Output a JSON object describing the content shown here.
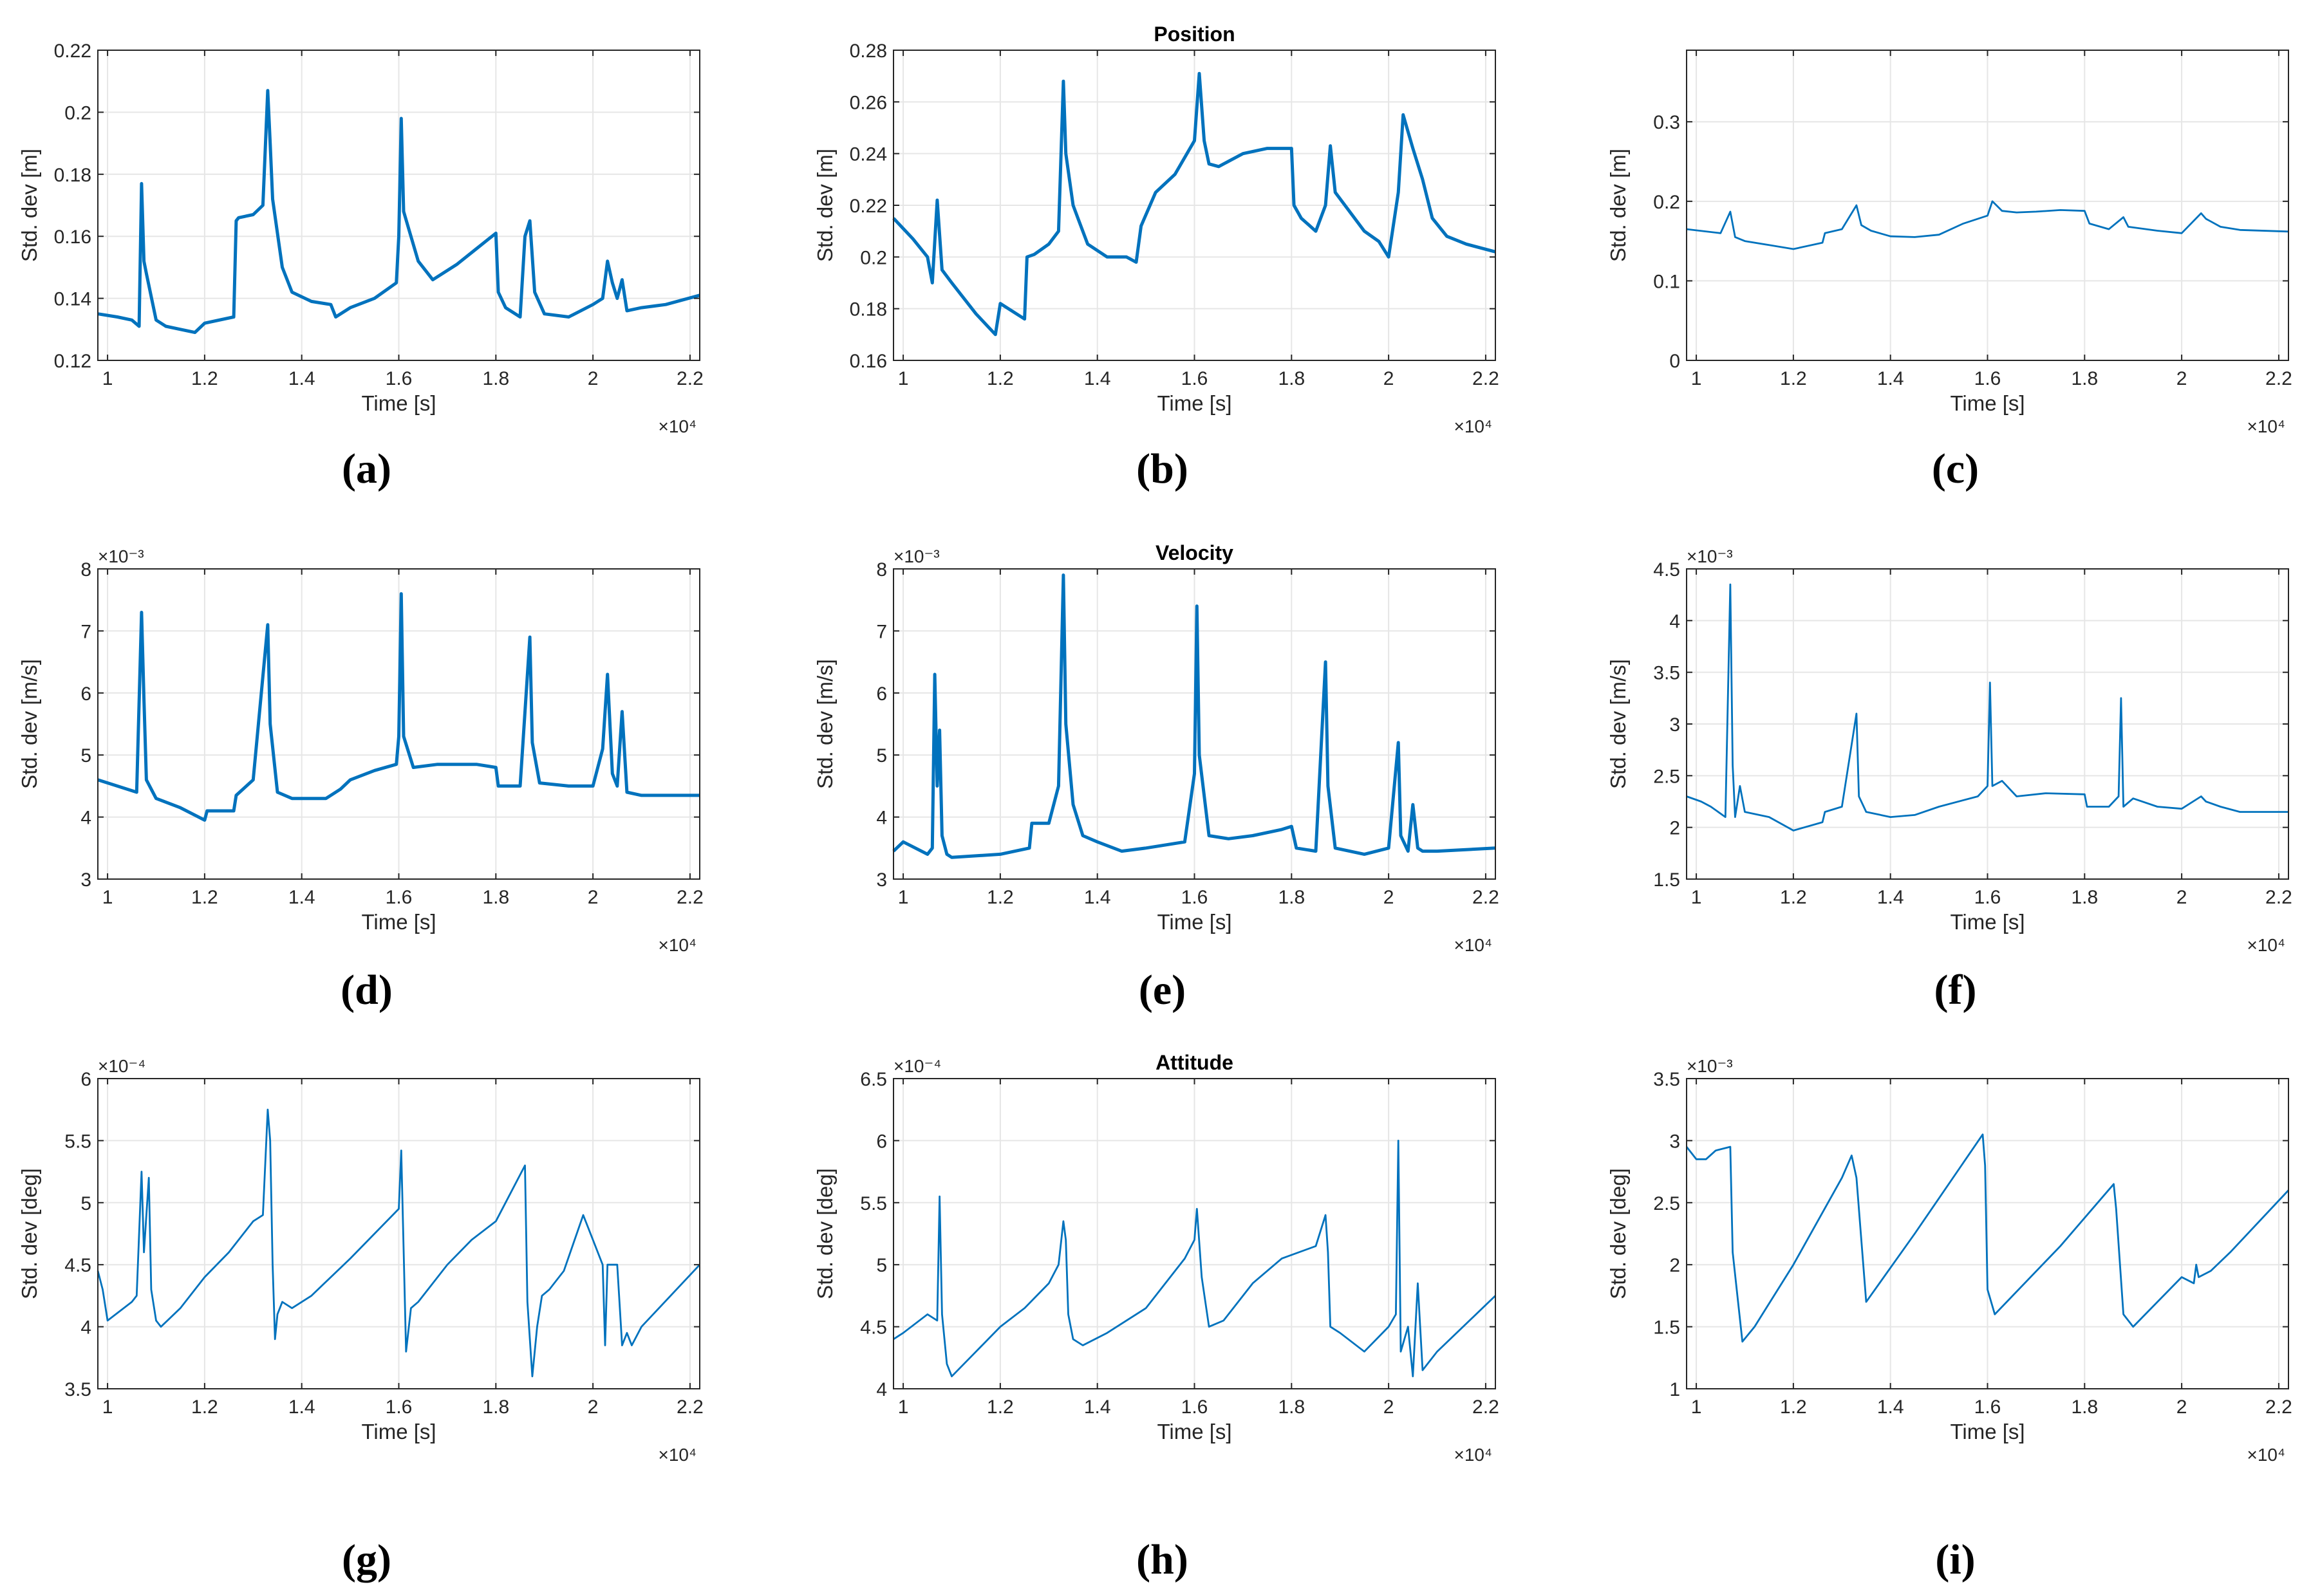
{
  "figure": {
    "line_color": "#0072bd",
    "grid_color": "#e6e6e6",
    "rows": [
      {
        "title": "Position"
      },
      {
        "title": "Velocity"
      },
      {
        "title": "Attitude"
      }
    ]
  },
  "chart_data": [
    {
      "panel": "a",
      "caption": "(a)",
      "type": "line",
      "title": "",
      "xlabel": "Time [s]",
      "ylabel": "Std. dev [m]",
      "xlim": [
        9800,
        22200
      ],
      "ylim": [
        0.12,
        0.22
      ],
      "xticks": [
        10000,
        12000,
        14000,
        16000,
        18000,
        20000,
        22000
      ],
      "xtick_labels": [
        "1",
        "1.2",
        "1.4",
        "1.6",
        "1.8",
        "2",
        "2.2"
      ],
      "x_exponent": "×10⁴",
      "yticks": [
        0.12,
        0.14,
        0.16,
        0.18,
        0.2,
        0.22
      ],
      "ytick_labels": [
        "0.12",
        "0.14",
        "0.16",
        "0.18",
        "0.2",
        "0.22"
      ],
      "y_exponent": "",
      "thick": true,
      "x": [
        9800,
        10200,
        10500,
        10650,
        10700,
        10750,
        10800,
        11000,
        11200,
        11800,
        12000,
        12600,
        12650,
        12700,
        13000,
        13200,
        13300,
        13350,
        13400,
        13600,
        13800,
        14200,
        14600,
        14700,
        15000,
        15500,
        15950,
        16000,
        16050,
        16100,
        16400,
        16700,
        17200,
        17600,
        18000,
        18050,
        18200,
        18500,
        18600,
        18700,
        18800,
        19000,
        19500,
        20000,
        20200,
        20300,
        20400,
        20500,
        20600,
        20700,
        21000,
        21500,
        22200
      ],
      "y": [
        0.135,
        0.134,
        0.133,
        0.131,
        0.177,
        0.152,
        0.148,
        0.133,
        0.131,
        0.129,
        0.132,
        0.134,
        0.165,
        0.166,
        0.167,
        0.17,
        0.207,
        0.19,
        0.172,
        0.15,
        0.142,
        0.139,
        0.138,
        0.134,
        0.137,
        0.14,
        0.145,
        0.16,
        0.198,
        0.168,
        0.152,
        0.146,
        0.151,
        0.156,
        0.161,
        0.142,
        0.137,
        0.134,
        0.16,
        0.165,
        0.142,
        0.135,
        0.134,
        0.138,
        0.14,
        0.152,
        0.145,
        0.14,
        0.146,
        0.136,
        0.137,
        0.138,
        0.141
      ]
    },
    {
      "panel": "b",
      "caption": "(b)",
      "type": "line",
      "title": "Position",
      "xlabel": "Time [s]",
      "ylabel": "Std. dev [m]",
      "xlim": [
        9800,
        22200
      ],
      "ylim": [
        0.16,
        0.28
      ],
      "xticks": [
        10000,
        12000,
        14000,
        16000,
        18000,
        20000,
        22000
      ],
      "xtick_labels": [
        "1",
        "1.2",
        "1.4",
        "1.6",
        "1.8",
        "2",
        "2.2"
      ],
      "x_exponent": "×10⁴",
      "yticks": [
        0.16,
        0.18,
        0.2,
        0.22,
        0.24,
        0.26,
        0.28
      ],
      "ytick_labels": [
        "0.16",
        "0.18",
        "0.2",
        "0.22",
        "0.24",
        "0.26",
        "0.28"
      ],
      "y_exponent": "",
      "thick": true,
      "x": [
        9800,
        10200,
        10500,
        10600,
        10700,
        10800,
        11000,
        11500,
        11900,
        12000,
        12500,
        12550,
        12700,
        13000,
        13200,
        13300,
        13350,
        13500,
        13600,
        13800,
        14200,
        14600,
        14800,
        14900,
        15200,
        15600,
        16000,
        16100,
        16200,
        16300,
        16500,
        17000,
        17500,
        18000,
        18050,
        18200,
        18500,
        18700,
        18800,
        18900,
        19500,
        19800,
        20000,
        20200,
        20300,
        20500,
        20700,
        20900,
        21200,
        21600,
        22200
      ],
      "y": [
        0.215,
        0.207,
        0.2,
        0.19,
        0.222,
        0.195,
        0.19,
        0.178,
        0.17,
        0.182,
        0.176,
        0.2,
        0.201,
        0.205,
        0.21,
        0.268,
        0.24,
        0.22,
        0.215,
        0.205,
        0.2,
        0.2,
        0.198,
        0.212,
        0.225,
        0.232,
        0.245,
        0.271,
        0.245,
        0.236,
        0.235,
        0.24,
        0.242,
        0.242,
        0.22,
        0.215,
        0.21,
        0.22,
        0.243,
        0.225,
        0.21,
        0.206,
        0.2,
        0.225,
        0.255,
        0.242,
        0.23,
        0.215,
        0.208,
        0.205,
        0.202
      ]
    },
    {
      "panel": "c",
      "caption": "(c)",
      "type": "line",
      "title": "",
      "xlabel": "Time [s]",
      "ylabel": "Std. dev [m]",
      "xlim": [
        9800,
        22200
      ],
      "ylim": [
        0,
        0.39
      ],
      "xticks": [
        10000,
        12000,
        14000,
        16000,
        18000,
        20000,
        22000
      ],
      "xtick_labels": [
        "1",
        "1.2",
        "1.4",
        "1.6",
        "1.8",
        "2",
        "2.2"
      ],
      "x_exponent": "×10⁴",
      "yticks": [
        0,
        0.1,
        0.2,
        0.3
      ],
      "ytick_labels": [
        "0",
        "0.1",
        "0.2",
        "0.3"
      ],
      "y_exponent": "",
      "thick": false,
      "x": [
        9800,
        10500,
        10700,
        10800,
        11000,
        11500,
        12000,
        12600,
        12650,
        13000,
        13300,
        13400,
        13600,
        14000,
        14500,
        15000,
        15500,
        16000,
        16100,
        16300,
        16600,
        17000,
        17500,
        18000,
        18100,
        18500,
        18800,
        18900,
        19500,
        20000,
        20400,
        20500,
        20800,
        21200,
        22200
      ],
      "y": [
        0.165,
        0.16,
        0.187,
        0.155,
        0.15,
        0.145,
        0.14,
        0.148,
        0.16,
        0.165,
        0.195,
        0.17,
        0.163,
        0.156,
        0.155,
        0.158,
        0.172,
        0.182,
        0.2,
        0.188,
        0.186,
        0.187,
        0.189,
        0.188,
        0.172,
        0.165,
        0.18,
        0.168,
        0.163,
        0.16,
        0.185,
        0.178,
        0.168,
        0.164,
        0.162
      ]
    },
    {
      "panel": "d",
      "caption": "(d)",
      "type": "line",
      "title": "",
      "xlabel": "Time [s]",
      "ylabel": "Std. dev [m/s]",
      "xlim": [
        9800,
        22200
      ],
      "ylim": [
        3,
        8
      ],
      "xticks": [
        10000,
        12000,
        14000,
        16000,
        18000,
        20000,
        22000
      ],
      "xtick_labels": [
        "1",
        "1.2",
        "1.4",
        "1.6",
        "1.8",
        "2",
        "2.2"
      ],
      "x_exponent": "×10⁴",
      "yticks": [
        3,
        4,
        5,
        6,
        7,
        8
      ],
      "ytick_labels": [
        "3",
        "4",
        "5",
        "6",
        "7",
        "8"
      ],
      "y_exponent": "×10⁻³",
      "thick": true,
      "x": [
        9800,
        10200,
        10600,
        10700,
        10750,
        10800,
        11000,
        11500,
        12000,
        12050,
        12600,
        12650,
        13000,
        13300,
        13350,
        13500,
        13800,
        14500,
        14800,
        15000,
        15500,
        15950,
        16000,
        16050,
        16100,
        16300,
        16800,
        17600,
        18000,
        18050,
        18500,
        18700,
        18750,
        18900,
        19500,
        20000,
        20200,
        20300,
        20400,
        20500,
        20600,
        20700,
        21000,
        22200
      ],
      "y": [
        4.6,
        4.5,
        4.4,
        7.3,
        5.9,
        4.6,
        4.3,
        4.15,
        3.95,
        4.1,
        4.1,
        4.35,
        4.6,
        7.1,
        5.5,
        4.4,
        4.3,
        4.3,
        4.45,
        4.6,
        4.75,
        4.85,
        5.3,
        7.6,
        5.3,
        4.8,
        4.85,
        4.85,
        4.8,
        4.5,
        4.5,
        6.9,
        5.2,
        4.55,
        4.5,
        4.5,
        5.1,
        6.3,
        4.7,
        4.5,
        5.7,
        4.4,
        4.35,
        4.35
      ]
    },
    {
      "panel": "e",
      "caption": "(e)",
      "type": "line",
      "title": "Velocity",
      "xlabel": "Time [s]",
      "ylabel": "Std. dev [m/s]",
      "xlim": [
        9800,
        22200
      ],
      "ylim": [
        3,
        8
      ],
      "xticks": [
        10000,
        12000,
        14000,
        16000,
        18000,
        20000,
        22000
      ],
      "xtick_labels": [
        "1",
        "1.2",
        "1.4",
        "1.6",
        "1.8",
        "2",
        "2.2"
      ],
      "x_exponent": "×10⁴",
      "yticks": [
        3,
        4,
        5,
        6,
        7,
        8
      ],
      "ytick_labels": [
        "3",
        "4",
        "5",
        "6",
        "7",
        "8"
      ],
      "y_exponent": "×10⁻³",
      "thick": true,
      "x": [
        9800,
        10000,
        10500,
        10600,
        10650,
        10700,
        10750,
        10800,
        10900,
        11000,
        12000,
        12600,
        12650,
        13000,
        13200,
        13300,
        13350,
        13500,
        13700,
        14000,
        14500,
        15000,
        15800,
        16000,
        16050,
        16100,
        16300,
        16700,
        17200,
        17800,
        18000,
        18100,
        18500,
        18700,
        18750,
        18900,
        19500,
        20000,
        20200,
        20250,
        20400,
        20500,
        20600,
        20700,
        21000,
        22200
      ],
      "y": [
        3.45,
        3.6,
        3.4,
        3.5,
        6.3,
        4.5,
        5.4,
        3.7,
        3.4,
        3.35,
        3.4,
        3.5,
        3.9,
        3.9,
        4.5,
        7.9,
        5.5,
        4.2,
        3.7,
        3.6,
        3.45,
        3.5,
        3.6,
        4.7,
        7.4,
        5.0,
        3.7,
        3.65,
        3.7,
        3.8,
        3.85,
        3.5,
        3.45,
        6.5,
        4.5,
        3.5,
        3.4,
        3.5,
        5.2,
        3.7,
        3.45,
        4.2,
        3.5,
        3.45,
        3.45,
        3.5
      ]
    },
    {
      "panel": "f",
      "caption": "(f)",
      "type": "line",
      "title": "",
      "xlabel": "Time [s]",
      "ylabel": "Std. dev [m/s]",
      "xlim": [
        9800,
        22200
      ],
      "ylim": [
        1.5,
        4.5
      ],
      "xticks": [
        10000,
        12000,
        14000,
        16000,
        18000,
        20000,
        22000
      ],
      "xtick_labels": [
        "1",
        "1.2",
        "1.4",
        "1.6",
        "1.8",
        "2",
        "2.2"
      ],
      "x_exponent": "×10⁴",
      "yticks": [
        1.5,
        2,
        2.5,
        3,
        3.5,
        4,
        4.5
      ],
      "ytick_labels": [
        "1.5",
        "2",
        "2.5",
        "3",
        "3.5",
        "4",
        "4.5"
      ],
      "y_exponent": "×10⁻³",
      "thick": false,
      "x": [
        9800,
        10100,
        10300,
        10600,
        10700,
        10750,
        10800,
        10900,
        11000,
        11500,
        12000,
        12600,
        12650,
        13000,
        13300,
        13350,
        13500,
        14000,
        14500,
        15000,
        15800,
        16000,
        16050,
        16100,
        16300,
        16600,
        17200,
        18000,
        18050,
        18500,
        18700,
        18750,
        18800,
        19000,
        19500,
        20000,
        20400,
        20500,
        20800,
        21200,
        22200
      ],
      "y": [
        2.3,
        2.25,
        2.2,
        2.1,
        4.35,
        2.6,
        2.1,
        2.4,
        2.15,
        2.1,
        1.97,
        2.05,
        2.15,
        2.2,
        3.1,
        2.3,
        2.15,
        2.1,
        2.12,
        2.2,
        2.3,
        2.4,
        3.4,
        2.4,
        2.45,
        2.3,
        2.33,
        2.32,
        2.2,
        2.2,
        2.3,
        3.25,
        2.2,
        2.28,
        2.2,
        2.18,
        2.3,
        2.25,
        2.2,
        2.15,
        2.15
      ]
    },
    {
      "panel": "g",
      "caption": "(g)",
      "type": "line",
      "title": "",
      "xlabel": "Time [s]",
      "ylabel": "Std. dev [deg]",
      "xlim": [
        9800,
        22200
      ],
      "ylim": [
        3.5,
        6
      ],
      "xticks": [
        10000,
        12000,
        14000,
        16000,
        18000,
        20000,
        22000
      ],
      "xtick_labels": [
        "1",
        "1.2",
        "1.4",
        "1.6",
        "1.8",
        "2",
        "2.2"
      ],
      "x_exponent": "×10⁴",
      "yticks": [
        3.5,
        4,
        4.5,
        5,
        5.5,
        6
      ],
      "ytick_labels": [
        "3.5",
        "4",
        "4.5",
        "5",
        "5.5",
        "6"
      ],
      "y_exponent": "×10⁻⁴",
      "thick": false,
      "x": [
        9800,
        9900,
        10000,
        10500,
        10600,
        10700,
        10750,
        10850,
        10900,
        11000,
        11100,
        11500,
        12000,
        12500,
        13000,
        13200,
        13300,
        13350,
        13400,
        13450,
        13500,
        13600,
        13800,
        14200,
        15000,
        16000,
        16050,
        16150,
        16250,
        16400,
        17000,
        17500,
        18000,
        18600,
        18650,
        18750,
        18850,
        18950,
        19100,
        19400,
        19800,
        20000,
        20200,
        20250,
        20300,
        20500,
        20600,
        20700,
        20800,
        21000,
        22200
      ],
      "y": [
        4.45,
        4.3,
        4.05,
        4.2,
        4.25,
        5.25,
        4.6,
        5.2,
        4.3,
        4.05,
        4.0,
        4.15,
        4.4,
        4.6,
        4.85,
        4.9,
        5.75,
        5.5,
        4.5,
        3.9,
        4.1,
        4.2,
        4.15,
        4.25,
        4.55,
        4.95,
        5.42,
        3.8,
        4.15,
        4.2,
        4.5,
        4.7,
        4.85,
        5.3,
        4.2,
        3.6,
        4.0,
        4.25,
        4.3,
        4.45,
        4.9,
        4.7,
        4.5,
        3.85,
        4.5,
        4.5,
        3.85,
        3.95,
        3.85,
        4.0,
        4.5
      ]
    },
    {
      "panel": "h",
      "caption": "(h)",
      "type": "line",
      "title": "Attitude",
      "xlabel": "Time [s]",
      "ylabel": "Std. dev [deg]",
      "xlim": [
        9800,
        22200
      ],
      "ylim": [
        4,
        6.5
      ],
      "xticks": [
        10000,
        12000,
        14000,
        16000,
        18000,
        20000,
        22000
      ],
      "xtick_labels": [
        "1",
        "1.2",
        "1.4",
        "1.6",
        "1.8",
        "2",
        "2.2"
      ],
      "x_exponent": "×10⁴",
      "yticks": [
        4,
        4.5,
        5,
        5.5,
        6,
        6.5
      ],
      "ytick_labels": [
        "4",
        "4.5",
        "5",
        "5.5",
        "6",
        "6.5"
      ],
      "y_exponent": "×10⁻⁴",
      "thick": false,
      "x": [
        9800,
        10000,
        10500,
        10700,
        10750,
        10800,
        10900,
        11000,
        11500,
        12000,
        12500,
        13000,
        13200,
        13300,
        13350,
        13400,
        13500,
        13700,
        14200,
        15000,
        15800,
        16000,
        16050,
        16150,
        16300,
        16600,
        17200,
        17800,
        18500,
        18700,
        18750,
        18800,
        19000,
        19500,
        20000,
        20150,
        20200,
        20250,
        20400,
        20500,
        20600,
        20700,
        21000,
        22200
      ],
      "y": [
        4.4,
        4.45,
        4.6,
        4.55,
        5.55,
        4.6,
        4.2,
        4.1,
        4.3,
        4.5,
        4.65,
        4.85,
        5.0,
        5.35,
        5.2,
        4.6,
        4.4,
        4.35,
        4.45,
        4.65,
        5.05,
        5.2,
        5.45,
        4.9,
        4.5,
        4.55,
        4.85,
        5.05,
        5.15,
        5.4,
        5.1,
        4.5,
        4.45,
        4.3,
        4.5,
        4.6,
        6.0,
        4.3,
        4.5,
        4.1,
        4.85,
        4.15,
        4.3,
        4.75
      ]
    },
    {
      "panel": "i",
      "caption": "(i)",
      "type": "line",
      "title": "",
      "xlabel": "Time [s]",
      "ylabel": "Std. dev [deg]",
      "xlim": [
        9800,
        22200
      ],
      "ylim": [
        1,
        3.5
      ],
      "xticks": [
        10000,
        12000,
        14000,
        16000,
        18000,
        20000,
        22000
      ],
      "xtick_labels": [
        "1",
        "1.2",
        "1.4",
        "1.6",
        "1.8",
        "2",
        "2.2"
      ],
      "x_exponent": "×10⁴",
      "yticks": [
        1,
        1.5,
        2,
        2.5,
        3,
        3.5
      ],
      "ytick_labels": [
        "1",
        "1.5",
        "2",
        "2.5",
        "3",
        "3.5"
      ],
      "y_exponent": "×10⁻³",
      "thick": false,
      "x": [
        9800,
        10000,
        10200,
        10400,
        10700,
        10750,
        10950,
        11200,
        12000,
        13000,
        13200,
        13300,
        13500,
        14500,
        15900,
        15950,
        16000,
        16150,
        17500,
        18600,
        18650,
        18800,
        19000,
        20000,
        20250,
        20300,
        20350,
        20600,
        21000,
        22200
      ],
      "y": [
        2.95,
        2.85,
        2.85,
        2.92,
        2.95,
        2.1,
        1.38,
        1.5,
        2.0,
        2.7,
        2.88,
        2.7,
        1.7,
        2.25,
        3.05,
        2.8,
        1.8,
        1.6,
        2.15,
        2.65,
        2.45,
        1.6,
        1.5,
        1.9,
        1.85,
        2.0,
        1.9,
        1.95,
        2.1,
        2.6
      ]
    }
  ]
}
